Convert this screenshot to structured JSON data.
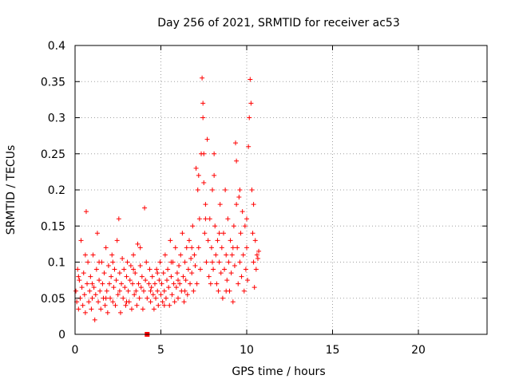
{
  "chart_data": {
    "type": "scatter",
    "title": "Day 256 of 2021, SRMTID for receiver ac53",
    "xlabel": "GPS time / hours",
    "ylabel": "SRMTID / TECUs",
    "xlim": [
      0,
      24
    ],
    "ylim": [
      0,
      0.4
    ],
    "xticks": [
      0,
      5,
      10,
      15,
      20
    ],
    "xtick_labels": [
      "0",
      "5",
      "10",
      "15",
      "20"
    ],
    "yticks": [
      0,
      0.05,
      0.1,
      0.15,
      0.2,
      0.25,
      0.3,
      0.35,
      0.4
    ],
    "ytick_labels": [
      "0",
      "0.05",
      "0.1",
      "0.15",
      "0.2",
      "0.25",
      "0.3",
      "0.35",
      "0.4"
    ],
    "grid": true,
    "marker": "plus",
    "color": "#ff0000",
    "series": [
      {
        "name": "SRMTID",
        "points": [
          [
            0.05,
            0.06
          ],
          [
            0.1,
            0.045
          ],
          [
            0.15,
            0.09
          ],
          [
            0.2,
            0.035
          ],
          [
            0.25,
            0.075
          ],
          [
            0.3,
            0.05
          ],
          [
            0.35,
            0.13
          ],
          [
            0.4,
            0.065
          ],
          [
            0.45,
            0.04
          ],
          [
            0.5,
            0.085
          ],
          [
            0.55,
            0.055
          ],
          [
            0.6,
            0.03
          ],
          [
            0.65,
            0.17
          ],
          [
            0.7,
            0.07
          ],
          [
            0.75,
            0.1
          ],
          [
            0.8,
            0.045
          ],
          [
            0.85,
            0.06
          ],
          [
            0.9,
            0.08
          ],
          [
            0.95,
            0.035
          ],
          [
            1.0,
            0.05
          ],
          [
            1.05,
            0.11
          ],
          [
            1.1,
            0.065
          ],
          [
            1.15,
            0.02
          ],
          [
            1.2,
            0.055
          ],
          [
            1.25,
            0.09
          ],
          [
            1.3,
            0.14
          ],
          [
            1.35,
            0.045
          ],
          [
            1.4,
            0.075
          ],
          [
            1.45,
            0.06
          ],
          [
            1.5,
            0.035
          ],
          [
            1.55,
            0.1
          ],
          [
            1.6,
            0.07
          ],
          [
            1.65,
            0.05
          ],
          [
            1.7,
            0.085
          ],
          [
            1.75,
            0.04
          ],
          [
            1.8,
            0.12
          ],
          [
            1.85,
            0.06
          ],
          [
            1.9,
            0.03
          ],
          [
            1.95,
            0.095
          ],
          [
            2.0,
            0.07
          ],
          [
            2.05,
            0.05
          ],
          [
            2.1,
            0.08
          ],
          [
            2.15,
            0.11
          ],
          [
            2.2,
            0.045
          ],
          [
            2.25,
            0.065
          ],
          [
            2.3,
            0.09
          ],
          [
            2.35,
            0.04
          ],
          [
            2.4,
            0.075
          ],
          [
            2.45,
            0.13
          ],
          [
            2.5,
            0.055
          ],
          [
            2.55,
            0.16
          ],
          [
            2.6,
            0.085
          ],
          [
            2.65,
            0.03
          ],
          [
            2.7,
            0.07
          ],
          [
            2.75,
            0.105
          ],
          [
            2.8,
            0.05
          ],
          [
            2.85,
            0.09
          ],
          [
            2.9,
            0.065
          ],
          [
            2.95,
            0.04
          ],
          [
            3.0,
            0.08
          ],
          [
            3.05,
            0.1
          ],
          [
            3.1,
            0.06
          ],
          [
            3.15,
            0.045
          ],
          [
            3.2,
            0.075
          ],
          [
            3.25,
            0.095
          ],
          [
            3.3,
            0.035
          ],
          [
            3.35,
            0.07
          ],
          [
            3.4,
            0.11
          ],
          [
            3.45,
            0.055
          ],
          [
            3.5,
            0.085
          ],
          [
            3.55,
            0.06
          ],
          [
            3.6,
            0.04
          ],
          [
            3.65,
            0.125
          ],
          [
            3.7,
            0.07
          ],
          [
            3.75,
            0.05
          ],
          [
            3.8,
            0.095
          ],
          [
            3.85,
            0.065
          ],
          [
            3.9,
            0.08
          ],
          [
            3.95,
            0.035
          ],
          [
            4.0,
            0.06
          ],
          [
            4.05,
            0.175
          ],
          [
            4.1,
            0.075
          ],
          [
            4.15,
            0.1
          ],
          [
            4.2,
            0.05
          ],
          [
            4.3,
            0.07
          ],
          [
            4.35,
            0.09
          ],
          [
            4.4,
            0.045
          ],
          [
            4.45,
            0.065
          ],
          [
            4.5,
            0.08
          ],
          [
            4.55,
            0.055
          ],
          [
            4.6,
            0.035
          ],
          [
            4.65,
            0.07
          ],
          [
            4.7,
            0.05
          ],
          [
            4.75,
            0.09
          ],
          [
            4.8,
            0.06
          ],
          [
            4.85,
            0.04
          ],
          [
            4.9,
            0.075
          ],
          [
            4.95,
            0.1
          ],
          [
            5.0,
            0.055
          ],
          [
            5.05,
            0.07
          ],
          [
            5.1,
            0.045
          ],
          [
            5.15,
            0.085
          ],
          [
            5.2,
            0.06
          ],
          [
            5.25,
            0.11
          ],
          [
            5.3,
            0.05
          ],
          [
            5.35,
            0.075
          ],
          [
            5.4,
            0.09
          ],
          [
            5.45,
            0.065
          ],
          [
            5.5,
            0.04
          ],
          [
            5.55,
            0.13
          ],
          [
            5.6,
            0.08
          ],
          [
            5.65,
            0.055
          ],
          [
            5.7,
            0.1
          ],
          [
            5.75,
            0.07
          ],
          [
            5.8,
            0.045
          ],
          [
            5.85,
            0.12
          ],
          [
            5.9,
            0.065
          ],
          [
            5.95,
            0.085
          ],
          [
            6.0,
            0.05
          ],
          [
            6.05,
            0.095
          ],
          [
            6.1,
            0.07
          ],
          [
            6.15,
            0.11
          ],
          [
            6.2,
            0.06
          ],
          [
            6.25,
            0.14
          ],
          [
            6.3,
            0.08
          ],
          [
            6.35,
            0.045
          ],
          [
            6.4,
            0.1
          ],
          [
            6.45,
            0.075
          ],
          [
            6.5,
            0.12
          ],
          [
            6.55,
            0.055
          ],
          [
            6.6,
            0.09
          ],
          [
            6.65,
            0.13
          ],
          [
            6.7,
            0.07
          ],
          [
            6.75,
            0.105
          ],
          [
            6.8,
            0.085
          ],
          [
            6.85,
            0.15
          ],
          [
            6.9,
            0.06
          ],
          [
            6.95,
            0.11
          ],
          [
            7.0,
            0.095
          ],
          [
            7.05,
            0.23
          ],
          [
            7.1,
            0.07
          ],
          [
            7.15,
            0.2
          ],
          [
            7.2,
            0.12
          ],
          [
            7.25,
            0.16
          ],
          [
            7.3,
            0.09
          ],
          [
            7.35,
            0.25
          ],
          [
            7.4,
            0.355
          ],
          [
            7.45,
            0.32
          ],
          [
            7.5,
            0.21
          ],
          [
            7.55,
            0.14
          ],
          [
            7.6,
            0.18
          ],
          [
            7.65,
            0.1
          ],
          [
            7.7,
            0.27
          ],
          [
            7.75,
            0.13
          ],
          [
            7.8,
            0.08
          ],
          [
            7.85,
            0.16
          ],
          [
            7.9,
            0.07
          ],
          [
            7.95,
            0.12
          ],
          [
            8.0,
            0.2
          ],
          [
            8.05,
            0.09
          ],
          [
            8.1,
            0.25
          ],
          [
            8.15,
            0.15
          ],
          [
            8.2,
            0.11
          ],
          [
            8.25,
            0.07
          ],
          [
            8.3,
            0.13
          ],
          [
            8.35,
            0.06
          ],
          [
            8.4,
            0.1
          ],
          [
            8.45,
            0.18
          ],
          [
            8.5,
            0.085
          ],
          [
            8.55,
            0.12
          ],
          [
            8.6,
            0.05
          ],
          [
            8.65,
            0.14
          ],
          [
            8.7,
            0.09
          ],
          [
            8.75,
            0.2
          ],
          [
            8.8,
            0.11
          ],
          [
            8.85,
            0.075
          ],
          [
            8.9,
            0.16
          ],
          [
            8.95,
            0.1
          ],
          [
            9.0,
            0.06
          ],
          [
            9.05,
            0.13
          ],
          [
            9.1,
            0.085
          ],
          [
            9.15,
            0.11
          ],
          [
            9.2,
            0.045
          ],
          [
            9.25,
            0.15
          ],
          [
            9.3,
            0.095
          ],
          [
            9.35,
            0.265
          ],
          [
            9.4,
            0.24
          ],
          [
            9.45,
            0.12
          ],
          [
            9.5,
            0.07
          ],
          [
            9.55,
            0.19
          ],
          [
            9.6,
            0.1
          ],
          [
            9.65,
            0.14
          ],
          [
            9.7,
            0.08
          ],
          [
            9.75,
            0.17
          ],
          [
            9.8,
            0.11
          ],
          [
            9.85,
            0.06
          ],
          [
            9.9,
            0.15
          ],
          [
            9.95,
            0.09
          ],
          [
            10.0,
            0.12
          ],
          [
            10.05,
            0.075
          ],
          [
            10.1,
            0.26
          ],
          [
            10.15,
            0.3
          ],
          [
            10.2,
            0.353
          ],
          [
            10.25,
            0.32
          ],
          [
            10.3,
            0.2
          ],
          [
            10.35,
            0.14
          ],
          [
            10.4,
            0.1
          ],
          [
            10.45,
            0.065
          ],
          [
            10.5,
            0.13
          ],
          [
            10.55,
            0.09
          ],
          [
            10.6,
            0.11
          ],
          [
            10.65,
            0.105
          ],
          [
            10.7,
            0.115
          ],
          [
            0.2,
            0.08
          ],
          [
            0.6,
            0.11
          ],
          [
            1.0,
            0.07
          ],
          [
            1.4,
            0.1
          ],
          [
            1.8,
            0.05
          ],
          [
            2.2,
            0.1
          ],
          [
            2.6,
            0.06
          ],
          [
            3.0,
            0.045
          ],
          [
            3.4,
            0.09
          ],
          [
            3.8,
            0.12
          ],
          [
            4.4,
            0.06
          ],
          [
            4.8,
            0.085
          ],
          [
            5.2,
            0.04
          ],
          [
            5.6,
            0.1
          ],
          [
            6.0,
            0.075
          ],
          [
            6.4,
            0.06
          ],
          [
            6.8,
            0.12
          ],
          [
            7.2,
            0.22
          ],
          [
            7.6,
            0.16
          ],
          [
            8.0,
            0.1
          ],
          [
            8.4,
            0.14
          ],
          [
            8.8,
            0.06
          ],
          [
            9.2,
            0.12
          ],
          [
            9.6,
            0.2
          ],
          [
            10.0,
            0.16
          ],
          [
            10.4,
            0.18
          ],
          [
            7.45,
            0.3
          ],
          [
            7.5,
            0.25
          ],
          [
            8.1,
            0.22
          ],
          [
            9.4,
            0.18
          ]
        ]
      }
    ],
    "outliers": [
      [
        4.2,
        0.0
      ]
    ]
  }
}
